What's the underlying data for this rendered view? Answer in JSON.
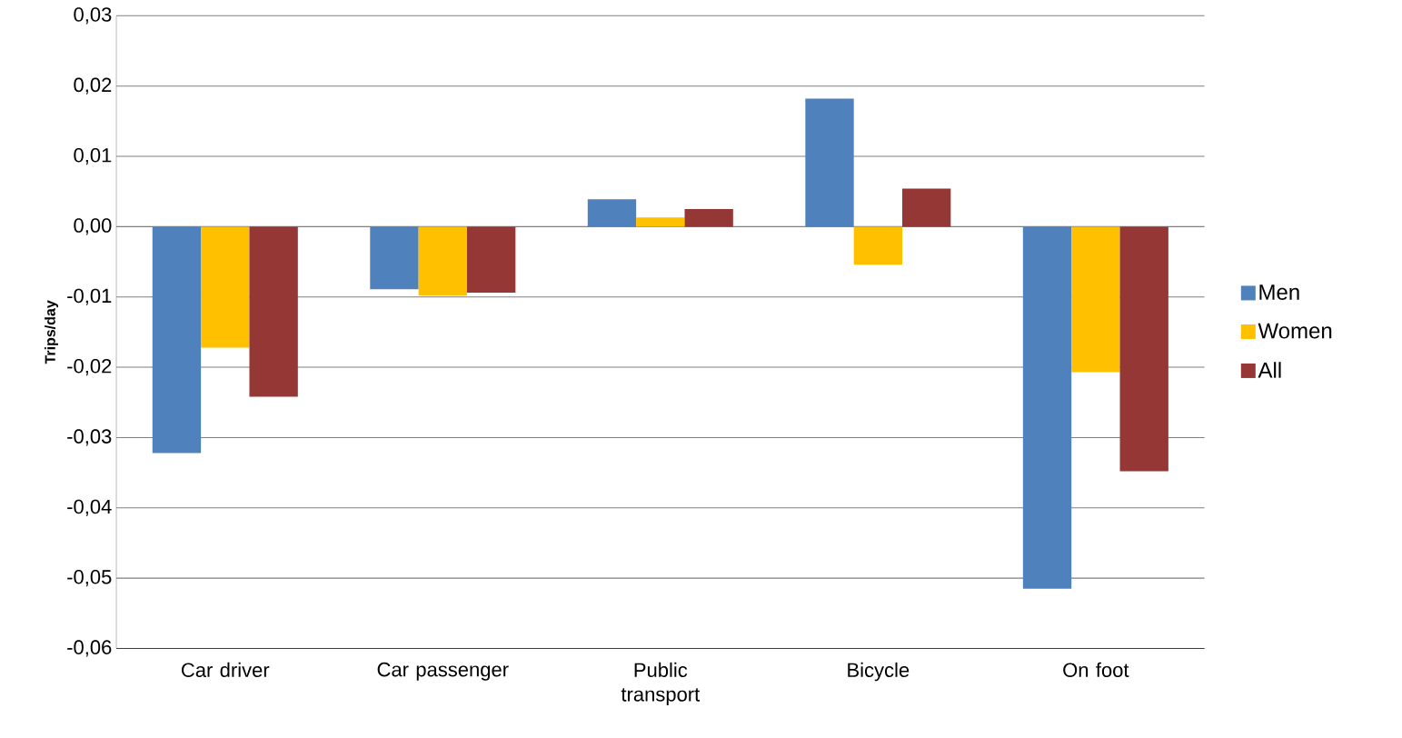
{
  "chart_data": {
    "type": "bar",
    "ylabel": "Trips/day",
    "categories": [
      "Car driver",
      "Car passenger",
      "Public transport",
      "Bicycle",
      "On foot"
    ],
    "series": [
      {
        "name": "Men",
        "color": "#4f81bd",
        "values": [
          -0.0322,
          -0.0089,
          0.0039,
          0.0182,
          -0.0515
        ]
      },
      {
        "name": "Women",
        "color": "#ffc000",
        "values": [
          -0.0172,
          -0.0098,
          0.0013,
          -0.0054,
          -0.0207
        ]
      },
      {
        "name": "All",
        "color": "#953735",
        "values": [
          -0.0242,
          -0.0094,
          0.0025,
          0.0054,
          -0.0348
        ]
      }
    ],
    "ylim": [
      -0.06,
      0.03
    ],
    "yticks": [
      {
        "value": -0.06,
        "label": "-0,06"
      },
      {
        "value": -0.05,
        "label": "-0,05"
      },
      {
        "value": -0.04,
        "label": "-0,04"
      },
      {
        "value": -0.03,
        "label": "-0,03"
      },
      {
        "value": -0.02,
        "label": "-0,02"
      },
      {
        "value": -0.01,
        "label": "-0,01"
      },
      {
        "value": 0,
        "label": "0,00"
      },
      {
        "value": 0.01,
        "label": "0,01"
      },
      {
        "value": 0.02,
        "label": "0,02"
      },
      {
        "value": 0.03,
        "label": "0,03"
      }
    ],
    "grid": "y",
    "legend": "right"
  }
}
